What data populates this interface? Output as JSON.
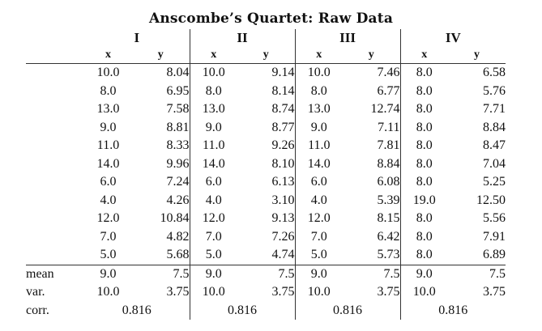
{
  "title": "Anscombe’s Quartet: Raw Data",
  "groups": [
    "I",
    "II",
    "III",
    "IV"
  ],
  "axis_labels": [
    "x",
    "y"
  ],
  "rows": [
    [
      "10.0",
      "8.04",
      "10.0",
      "9.14",
      "10.0",
      "7.46",
      "8.0",
      "6.58"
    ],
    [
      "8.0",
      "6.95",
      "8.0",
      "8.14",
      "8.0",
      "6.77",
      "8.0",
      "5.76"
    ],
    [
      "13.0",
      "7.58",
      "13.0",
      "8.74",
      "13.0",
      "12.74",
      "8.0",
      "7.71"
    ],
    [
      "9.0",
      "8.81",
      "9.0",
      "8.77",
      "9.0",
      "7.11",
      "8.0",
      "8.84"
    ],
    [
      "11.0",
      "8.33",
      "11.0",
      "9.26",
      "11.0",
      "7.81",
      "8.0",
      "8.47"
    ],
    [
      "14.0",
      "9.96",
      "14.0",
      "8.10",
      "14.0",
      "8.84",
      "8.0",
      "7.04"
    ],
    [
      "6.0",
      "7.24",
      "6.0",
      "6.13",
      "6.0",
      "6.08",
      "8.0",
      "5.25"
    ],
    [
      "4.0",
      "4.26",
      "4.0",
      "3.10",
      "4.0",
      "5.39",
      "19.0",
      "12.50"
    ],
    [
      "12.0",
      "10.84",
      "12.0",
      "9.13",
      "12.0",
      "8.15",
      "8.0",
      "5.56"
    ],
    [
      "7.0",
      "4.82",
      "7.0",
      "7.26",
      "7.0",
      "6.42",
      "8.0",
      "7.91"
    ],
    [
      "5.0",
      "5.68",
      "5.0",
      "4.74",
      "5.0",
      "5.73",
      "8.0",
      "6.89"
    ]
  ],
  "stats": {
    "mean": {
      "label": "mean",
      "values": [
        "9.0",
        "7.5",
        "9.0",
        "7.5",
        "9.0",
        "7.5",
        "9.0",
        "7.5"
      ]
    },
    "var": {
      "label": "var.",
      "values": [
        "10.0",
        "3.75",
        "10.0",
        "3.75",
        "10.0",
        "3.75",
        "10.0",
        "3.75"
      ]
    },
    "corr": {
      "label": "corr.",
      "values": [
        "0.816",
        "0.816",
        "0.816",
        "0.816"
      ]
    }
  }
}
